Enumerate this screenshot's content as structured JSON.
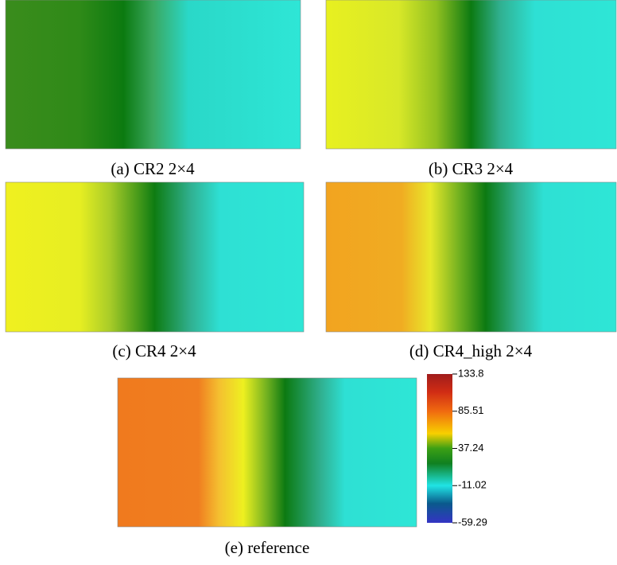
{
  "panels": [
    {
      "caption": "(a) CR2 2×4"
    },
    {
      "caption": "(b) CR3 2×4"
    },
    {
      "caption": "(c) CR4 2×4"
    },
    {
      "caption": "(d) CR4_high 2×4"
    },
    {
      "caption": "(e) reference"
    }
  ],
  "colorbar": {
    "range": [
      -59.29,
      133.8
    ],
    "ticks": [
      133.8,
      85.51,
      37.24,
      -11.02,
      -59.29
    ]
  }
}
